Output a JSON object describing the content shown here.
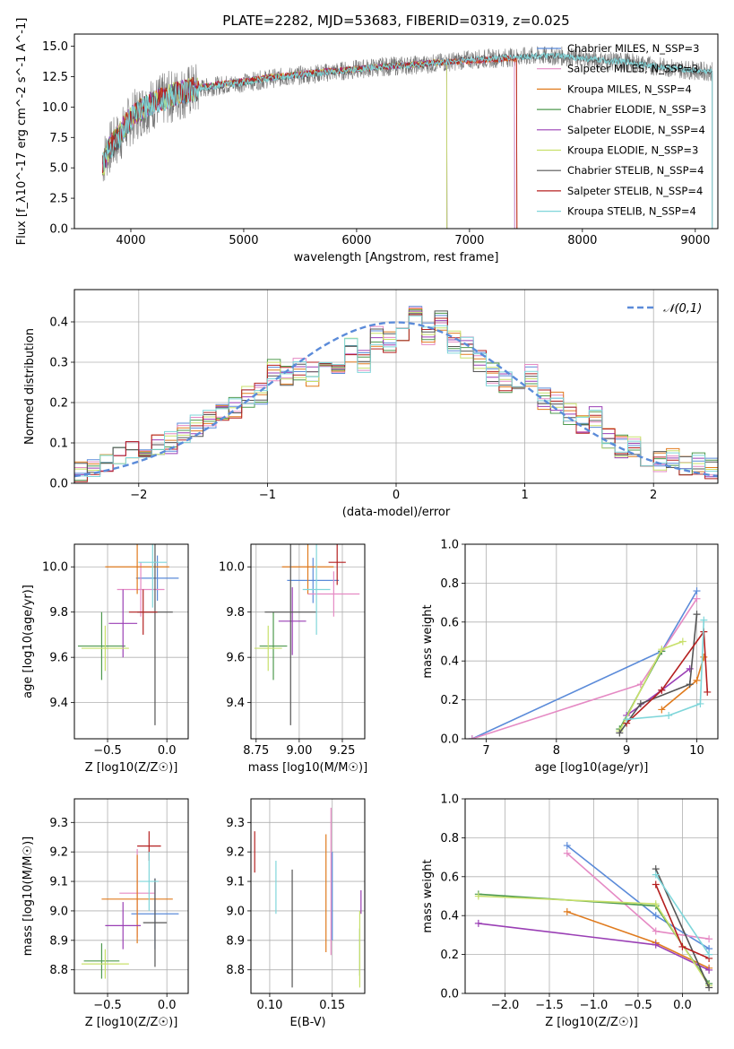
{
  "figure": {
    "title": "PLATE=2282, MJD=53683, FIBERID=0319, z=0.025"
  },
  "model_colors": {
    "Chabrier MILES": "#5b8bd9",
    "Salpeter MILES": "#e58ac4",
    "Kroupa MILES": "#e07b1e",
    "Chabrier ELODIE": "#4e9a4e",
    "Salpeter ELODIE": "#9a3fb5",
    "Kroupa ELODIE": "#c8e06b",
    "Chabrier STELIB": "#555555",
    "Salpeter STELIB": "#b52020",
    "Kroupa STELIB": "#7fd6da"
  },
  "chart_data": [
    {
      "id": "spectrum",
      "type": "line",
      "title": "PLATE=2282, MJD=53683, FIBERID=0319, z=0.025",
      "xlabel": "wavelength [Angstrom, rest frame]",
      "ylabel": "Flux [f_λ10^-17 erg cm^-2 s^-1 A^-1]",
      "xlim": [
        3500,
        9200
      ],
      "ylim": [
        0,
        16
      ],
      "xticks": [
        4000,
        5000,
        6000,
        7000,
        8000,
        9000
      ],
      "yticks": [
        0.0,
        2.5,
        5.0,
        7.5,
        10.0,
        12.5,
        15.0
      ],
      "grid": false,
      "legend_position": "top-right",
      "legend": [
        "Chabrier MILES, N_SSP=3",
        "Salpeter MILES, N_SSP=3",
        "Kroupa MILES, N_SSP=4",
        "Chabrier ELODIE, N_SSP=3",
        "Salpeter ELODIE, N_SSP=4",
        "Kroupa ELODIE, N_SSP=3",
        "Chabrier STELIB, N_SSP=4",
        "Salpeter STELIB, N_SSP=4",
        "Kroupa STELIB, N_SSP=4"
      ],
      "data_wavelength": [
        3750,
        3800,
        3900,
        4000,
        4100,
        4200,
        4400,
        4600,
        4800,
        5000,
        5200,
        5400,
        5600,
        5800,
        6000,
        6200,
        6400,
        6600,
        6800,
        7000,
        7200,
        7400,
        7600,
        7800,
        8000,
        8200,
        8400,
        8600,
        8800,
        9000,
        9150
      ],
      "data_flux": [
        5.5,
        6.5,
        7.5,
        9.0,
        9.8,
        10.3,
        11.0,
        11.5,
        11.8,
        12.0,
        12.3,
        12.5,
        12.7,
        12.9,
        13.1,
        13.3,
        13.4,
        13.5,
        13.7,
        13.9,
        14.0,
        14.1,
        14.2,
        14.2,
        14.0,
        13.8,
        13.7,
        13.4,
        13.2,
        13.0,
        12.9
      ],
      "model_wavelength": [
        3750,
        3800,
        3900,
        4000,
        4200,
        4400,
        4600,
        4800,
        5000,
        5200,
        5400,
        5600,
        5800,
        6000,
        6200,
        6400,
        6600,
        6800,
        7000,
        7200,
        7400
      ],
      "model_flux": [
        5.0,
        6.5,
        7.8,
        9.2,
        10.4,
        11.1,
        11.6,
        11.9,
        12.1,
        12.4,
        12.6,
        12.8,
        13.0,
        13.1,
        13.3,
        13.4,
        13.6,
        13.7,
        13.8,
        13.9,
        14.0
      ],
      "model_cutoffs": [
        {
          "model": "Chabrier MILES",
          "end": 7400
        },
        {
          "model": "Salpeter MILES",
          "end": 7400
        },
        {
          "model": "Kroupa MILES",
          "end": 7420
        },
        {
          "model": "Chabrier ELODIE",
          "end": 6800
        },
        {
          "model": "Salpeter ELODIE",
          "end": 6800
        },
        {
          "model": "Kroupa ELODIE",
          "end": 6800
        },
        {
          "model": "Chabrier STELIB",
          "end": 9150
        },
        {
          "model": "Salpeter STELIB",
          "end": 7420
        },
        {
          "model": "Kroupa STELIB",
          "end": 9150
        }
      ]
    },
    {
      "id": "residuals",
      "type": "line",
      "xlabel": "(data-model)/error",
      "ylabel": "Normed distribution",
      "xlim": [
        -2.5,
        2.5
      ],
      "ylim": [
        0,
        0.48
      ],
      "xticks": [
        -2,
        -1,
        0,
        1,
        2
      ],
      "yticks": [
        0.0,
        0.1,
        0.2,
        0.3,
        0.4
      ],
      "grid": true,
      "legend_position": "top-right",
      "legend": [
        "𝒩(0,1)"
      ],
      "bins": [
        -2.5,
        -2.4,
        -2.3,
        -2.2,
        -2.1,
        -2.0,
        -1.9,
        -1.8,
        -1.7,
        -1.6,
        -1.5,
        -1.4,
        -1.3,
        -1.2,
        -1.1,
        -1.0,
        -0.9,
        -0.8,
        -0.7,
        -0.6,
        -0.5,
        -0.4,
        -0.3,
        -0.2,
        -0.1,
        0.0,
        0.1,
        0.2,
        0.3,
        0.4,
        0.5,
        0.6,
        0.7,
        0.8,
        0.9,
        1.0,
        1.1,
        1.2,
        1.3,
        1.4,
        1.5,
        1.6,
        1.7,
        1.8,
        1.9,
        2.0,
        2.1,
        2.2,
        2.3,
        2.4
      ],
      "hist_values": [
        0.03,
        0.035,
        0.05,
        0.07,
        0.08,
        0.09,
        0.1,
        0.1,
        0.12,
        0.14,
        0.16,
        0.18,
        0.19,
        0.21,
        0.22,
        0.28,
        0.26,
        0.28,
        0.27,
        0.3,
        0.29,
        0.33,
        0.3,
        0.36,
        0.35,
        0.36,
        0.43,
        0.37,
        0.4,
        0.35,
        0.34,
        0.3,
        0.27,
        0.25,
        0.22,
        0.27,
        0.21,
        0.2,
        0.17,
        0.15,
        0.16,
        0.11,
        0.09,
        0.09,
        0.06,
        0.05,
        0.06,
        0.04,
        0.05,
        0.04
      ],
      "normal_curve": {
        "mean": 0,
        "std": 1
      }
    },
    {
      "id": "age_vs_Z",
      "type": "scatter",
      "xlabel": "Z [log10(Z/Z☉)]",
      "ylabel": "age [log10(age/yr)]",
      "xlim": [
        -0.78,
        0.18
      ],
      "ylim": [
        9.24,
        10.1
      ],
      "xticks": [
        -0.5,
        0.0
      ],
      "yticks": [
        9.4,
        9.6,
        9.8,
        10.0
      ],
      "grid": true,
      "points": [
        {
          "model": "Chabrier MILES",
          "x": -0.08,
          "y": 9.95,
          "xerr": 0.18,
          "yerr": 0.1
        },
        {
          "model": "Salpeter MILES",
          "x": -0.22,
          "y": 9.9,
          "xerr": 0.2,
          "yerr": 0.12
        },
        {
          "model": "Kroupa MILES",
          "x": -0.25,
          "y": 10.0,
          "xerr": 0.27,
          "yerr": 0.12
        },
        {
          "model": "Chabrier ELODIE",
          "x": -0.55,
          "y": 9.65,
          "xerr": 0.2,
          "yerr": 0.15
        },
        {
          "model": "Salpeter ELODIE",
          "x": -0.37,
          "y": 9.75,
          "xerr": 0.12,
          "yerr": 0.15
        },
        {
          "model": "Kroupa ELODIE",
          "x": -0.52,
          "y": 9.64,
          "xerr": 0.2,
          "yerr": 0.1
        },
        {
          "model": "Chabrier STELIB",
          "x": -0.1,
          "y": 9.8,
          "xerr": 0.15,
          "yerr": 0.5
        },
        {
          "model": "Salpeter STELIB",
          "x": -0.2,
          "y": 9.8,
          "xerr": 0.12,
          "yerr": 0.1
        },
        {
          "model": "Kroupa STELIB",
          "x": -0.12,
          "y": 10.02,
          "xerr": 0.12,
          "yerr": 0.2
        }
      ]
    },
    {
      "id": "age_vs_mass",
      "type": "scatter",
      "xlabel": "mass [log10(M/M☉)]",
      "ylabel": "",
      "xlim": [
        8.72,
        9.38
      ],
      "ylim": [
        9.24,
        10.1
      ],
      "xticks": [
        8.75,
        9.0,
        9.25
      ],
      "yticks": [
        9.4,
        9.6,
        9.8,
        10.0
      ],
      "grid": true,
      "points": [
        {
          "model": "Chabrier MILES",
          "x": 9.08,
          "y": 9.94,
          "xerr": 0.15,
          "yerr": 0.1
        },
        {
          "model": "Salpeter MILES",
          "x": 9.2,
          "y": 9.88,
          "xerr": 0.15,
          "yerr": 0.1
        },
        {
          "model": "Kroupa MILES",
          "x": 9.05,
          "y": 10.0,
          "xerr": 0.15,
          "yerr": 0.12
        },
        {
          "model": "Chabrier ELODIE",
          "x": 8.85,
          "y": 9.65,
          "xerr": 0.08,
          "yerr": 0.15
        },
        {
          "model": "Salpeter ELODIE",
          "x": 8.96,
          "y": 9.76,
          "xerr": 0.08,
          "yerr": 0.15
        },
        {
          "model": "Kroupa ELODIE",
          "x": 8.82,
          "y": 9.64,
          "xerr": 0.08,
          "yerr": 0.1
        },
        {
          "model": "Chabrier STELIB",
          "x": 8.95,
          "y": 9.8,
          "xerr": 0.15,
          "yerr": 0.5
        },
        {
          "model": "Salpeter STELIB",
          "x": 9.22,
          "y": 10.02,
          "xerr": 0.05,
          "yerr": 0.1
        },
        {
          "model": "Kroupa STELIB",
          "x": 9.1,
          "y": 9.9,
          "xerr": 0.08,
          "yerr": 0.2
        }
      ]
    },
    {
      "id": "weight_vs_age",
      "type": "line",
      "xlabel": "age [log10(age/yr)]",
      "ylabel": "mass weight",
      "xlim": [
        6.7,
        10.3
      ],
      "ylim": [
        0,
        1.0
      ],
      "xticks": [
        7,
        8,
        9,
        10
      ],
      "yticks": [
        0.0,
        0.2,
        0.4,
        0.6,
        0.8,
        1.0
      ],
      "grid": true,
      "series": [
        {
          "model": "Chabrier MILES",
          "x": [
            6.8,
            9.5,
            10.0
          ],
          "y": [
            0.0,
            0.45,
            0.76
          ]
        },
        {
          "model": "Salpeter MILES",
          "x": [
            6.8,
            9.2,
            10.0
          ],
          "y": [
            0.0,
            0.28,
            0.72
          ]
        },
        {
          "model": "Kroupa MILES",
          "x": [
            9.5,
            10.0,
            10.1
          ],
          "y": [
            0.15,
            0.3,
            0.42
          ]
        },
        {
          "model": "Chabrier ELODIE",
          "x": [
            8.9,
            9.5
          ],
          "y": [
            0.05,
            0.45
          ]
        },
        {
          "model": "Salpeter ELODIE",
          "x": [
            9.0,
            9.5,
            9.9
          ],
          "y": [
            0.12,
            0.25,
            0.36
          ]
        },
        {
          "model": "Kroupa ELODIE",
          "x": [
            8.9,
            9.5,
            9.8
          ],
          "y": [
            0.04,
            0.46,
            0.5
          ]
        },
        {
          "model": "Chabrier STELIB",
          "x": [
            8.9,
            9.2,
            9.9,
            10.0
          ],
          "y": [
            0.03,
            0.18,
            0.28,
            0.64
          ]
        },
        {
          "model": "Salpeter STELIB",
          "x": [
            9.0,
            9.5,
            10.1,
            10.15
          ],
          "y": [
            0.08,
            0.25,
            0.55,
            0.24
          ]
        },
        {
          "model": "Kroupa STELIB",
          "x": [
            9.0,
            9.6,
            10.05,
            10.1
          ],
          "y": [
            0.1,
            0.12,
            0.18,
            0.61
          ]
        }
      ]
    },
    {
      "id": "mass_vs_Z",
      "type": "scatter",
      "xlabel": "Z [log10(Z/Z☉)]",
      "ylabel": "mass [log10(M/M☉)]",
      "xlim": [
        -0.78,
        0.18
      ],
      "ylim": [
        8.72,
        9.38
      ],
      "xticks": [
        -0.5,
        0.0
      ],
      "yticks": [
        8.8,
        8.9,
        9.0,
        9.1,
        9.2,
        9.3
      ],
      "grid": true,
      "points": [
        {
          "model": "Chabrier MILES",
          "x": -0.1,
          "y": 8.99,
          "xerr": 0.2,
          "yerr": 0.12
        },
        {
          "model": "Salpeter MILES",
          "x": -0.25,
          "y": 9.06,
          "xerr": 0.15,
          "yerr": 0.15
        },
        {
          "model": "Kroupa MILES",
          "x": -0.25,
          "y": 9.04,
          "xerr": 0.3,
          "yerr": 0.15
        },
        {
          "model": "Chabrier ELODIE",
          "x": -0.55,
          "y": 8.83,
          "xerr": 0.15,
          "yerr": 0.06
        },
        {
          "model": "Salpeter ELODIE",
          "x": -0.37,
          "y": 8.95,
          "xerr": 0.15,
          "yerr": 0.08
        },
        {
          "model": "Kroupa ELODIE",
          "x": -0.52,
          "y": 8.82,
          "xerr": 0.2,
          "yerr": 0.05
        },
        {
          "model": "Chabrier STELIB",
          "x": -0.1,
          "y": 8.96,
          "xerr": 0.1,
          "yerr": 0.15
        },
        {
          "model": "Salpeter STELIB",
          "x": -0.15,
          "y": 9.22,
          "xerr": 0.1,
          "yerr": 0.05
        },
        {
          "model": "Kroupa STELIB",
          "x": -0.15,
          "y": 9.1,
          "xerr": 0.08,
          "yerr": 0.1
        }
      ]
    },
    {
      "id": "mass_vs_EBV",
      "type": "scatter",
      "xlabel": "E(B-V)",
      "ylabel": "",
      "xlim": [
        0.085,
        0.176
      ],
      "ylim": [
        8.72,
        9.38
      ],
      "xticks": [
        0.1,
        0.15
      ],
      "yticks": [
        8.8,
        8.9,
        9.0,
        9.1,
        9.2,
        9.3
      ],
      "grid": true,
      "points": [
        {
          "model": "Chabrier MILES",
          "x": 0.15,
          "y": 9.05,
          "xerr": 0,
          "yerr": 0.15
        },
        {
          "model": "Salpeter MILES",
          "x": 0.149,
          "y": 9.1,
          "xerr": 0,
          "yerr": 0.25
        },
        {
          "model": "Kroupa MILES",
          "x": 0.145,
          "y": 9.06,
          "xerr": 0,
          "yerr": 0.2
        },
        {
          "model": "Chabrier ELODIE",
          "x": 0.172,
          "y": 8.86,
          "xerr": 0,
          "yerr": 0.08
        },
        {
          "model": "Salpeter ELODIE",
          "x": 0.173,
          "y": 9.03,
          "xerr": 0,
          "yerr": 0.04
        },
        {
          "model": "Kroupa ELODIE",
          "x": 0.172,
          "y": 8.87,
          "xerr": 0,
          "yerr": 0.13
        },
        {
          "model": "Chabrier STELIB",
          "x": 0.118,
          "y": 8.94,
          "xerr": 0,
          "yerr": 0.2
        },
        {
          "model": "Salpeter STELIB",
          "x": 0.088,
          "y": 9.2,
          "xerr": 0,
          "yerr": 0.07
        },
        {
          "model": "Kroupa STELIB",
          "x": 0.105,
          "y": 9.08,
          "xerr": 0,
          "yerr": 0.09
        }
      ]
    },
    {
      "id": "weight_vs_Z",
      "type": "line",
      "xlabel": "Z [log10(Z/Z☉)]",
      "ylabel": "mass weight",
      "xlim": [
        -2.45,
        0.4
      ],
      "ylim": [
        0,
        1.0
      ],
      "xticks": [
        -2.0,
        -1.5,
        -1.0,
        -0.5,
        0.0
      ],
      "yticks": [
        0.0,
        0.2,
        0.4,
        0.6,
        0.8,
        1.0
      ],
      "grid": true,
      "series": [
        {
          "model": "Chabrier MILES",
          "x": [
            -1.3,
            -0.3,
            0.3
          ],
          "y": [
            0.76,
            0.4,
            0.23
          ]
        },
        {
          "model": "Salpeter MILES",
          "x": [
            -1.3,
            -0.3,
            0.3
          ],
          "y": [
            0.72,
            0.32,
            0.28
          ]
        },
        {
          "model": "Kroupa MILES",
          "x": [
            -1.3,
            -0.3,
            0.3
          ],
          "y": [
            0.42,
            0.26,
            0.13
          ]
        },
        {
          "model": "Chabrier ELODIE",
          "x": [
            -2.3,
            -0.3,
            0.3
          ],
          "y": [
            0.51,
            0.45,
            0.05
          ]
        },
        {
          "model": "Salpeter ELODIE",
          "x": [
            -2.3,
            -0.3,
            0.3
          ],
          "y": [
            0.36,
            0.25,
            0.12
          ]
        },
        {
          "model": "Kroupa ELODIE",
          "x": [
            -2.3,
            -0.3,
            0.3
          ],
          "y": [
            0.5,
            0.46,
            0.04
          ]
        },
        {
          "model": "Chabrier STELIB",
          "x": [
            -0.3,
            0.3
          ],
          "y": [
            0.64,
            0.03
          ]
        },
        {
          "model": "Salpeter STELIB",
          "x": [
            -0.3,
            0.0,
            0.3
          ],
          "y": [
            0.56,
            0.24,
            0.18
          ]
        },
        {
          "model": "Kroupa STELIB",
          "x": [
            -0.3,
            0.3
          ],
          "y": [
            0.61,
            0.2
          ]
        }
      ]
    }
  ]
}
